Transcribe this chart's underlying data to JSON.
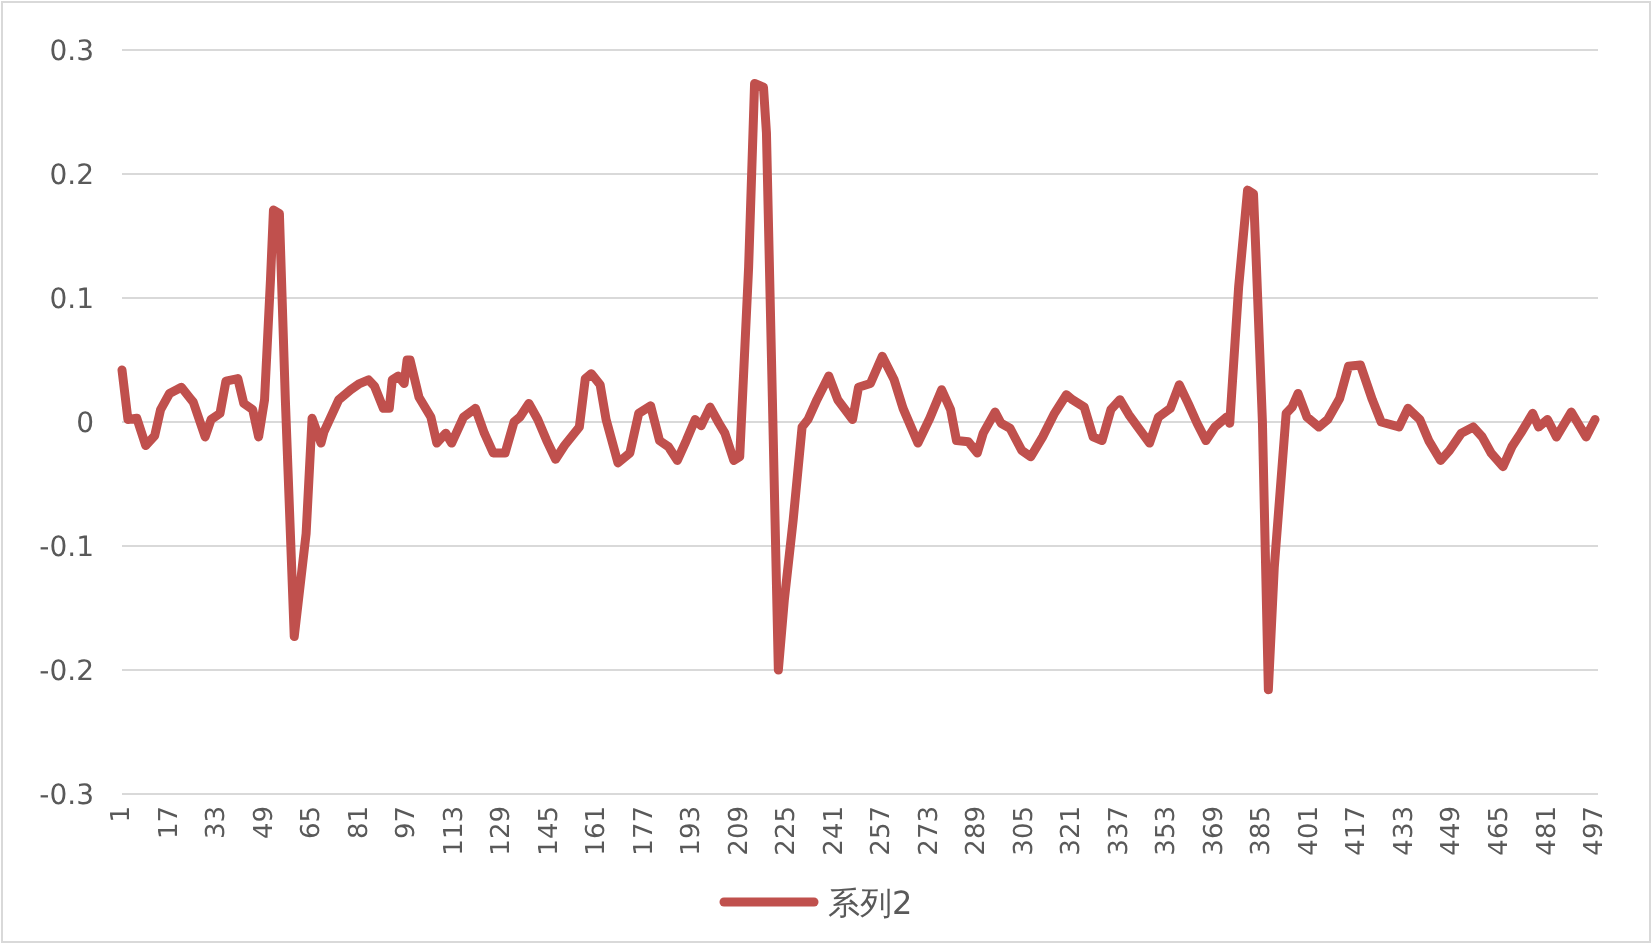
{
  "chart_data": {
    "type": "line",
    "grid": "y",
    "legend": "bottom",
    "xlim": [
      1,
      498
    ],
    "ylim": [
      -0.3,
      0.3
    ],
    "xticks": [
      1,
      17,
      33,
      49,
      65,
      81,
      97,
      113,
      129,
      145,
      161,
      177,
      193,
      209,
      225,
      241,
      257,
      273,
      289,
      305,
      321,
      337,
      353,
      369,
      385,
      401,
      417,
      433,
      449,
      465,
      481,
      497
    ],
    "yticks": [
      -0.3,
      -0.2,
      -0.1,
      0,
      0.1,
      0.2,
      0.3
    ],
    "x": [
      1,
      3,
      6,
      9,
      12,
      14,
      17,
      21,
      24,
      25,
      29,
      31,
      34,
      36,
      40,
      42,
      45,
      47,
      49,
      51,
      52,
      54,
      56,
      59,
      63,
      65,
      68,
      69,
      74,
      78,
      81,
      84,
      86,
      89,
      91,
      92,
      94,
      96,
      97,
      98,
      101,
      105,
      107,
      110,
      112,
      116,
      120,
      123,
      126,
      130,
      133,
      135,
      138,
      141,
      144,
      147,
      150,
      155,
      157,
      159,
      162,
      164,
      168,
      172,
      175,
      179,
      182,
      185,
      188,
      191,
      194,
      196,
      199,
      202,
      204,
      207,
      209,
      212,
      214,
      217,
      218,
      220,
      222,
      224,
      227,
      230,
      232,
      235,
      239,
      242,
      247,
      249,
      253,
      257,
      261,
      264,
      269,
      273,
      277,
      280,
      282,
      286,
      289,
      291,
      295,
      297,
      300,
      304,
      307,
      311,
      315,
      319,
      321,
      325,
      328,
      331,
      334,
      337,
      340,
      343,
      347,
      350,
      354,
      357,
      360,
      363,
      366,
      369,
      373,
      374,
      377,
      380,
      382,
      383,
      385,
      387,
      389,
      393,
      395,
      397,
      400,
      404,
      407,
      411,
      414,
      418,
      422,
      425,
      431,
      434,
      438,
      441,
      445,
      448,
      452,
      456,
      459,
      462,
      466,
      469,
      472,
      476,
      478,
      481,
      484,
      486,
      489,
      492,
      494,
      497
    ],
    "series": [
      {
        "name": "系列2",
        "color": "#c0504d",
        "values": [
          0.042,
          0.002,
          0.003,
          -0.019,
          -0.011,
          0.01,
          0.023,
          0.028,
          0.019,
          0.016,
          -0.012,
          0.002,
          0.007,
          0.033,
          0.035,
          0.015,
          0.01,
          -0.012,
          0.018,
          0.115,
          0.171,
          0.168,
          0.018,
          -0.173,
          -0.09,
          0.003,
          -0.017,
          -0.008,
          0.018,
          0.026,
          0.031,
          0.034,
          0.029,
          0.011,
          0.011,
          0.034,
          0.037,
          0.031,
          0.05,
          0.05,
          0.02,
          0.004,
          -0.017,
          -0.009,
          -0.017,
          0.004,
          0.011,
          -0.009,
          -0.025,
          -0.025,
          0.0,
          0.004,
          0.015,
          0.002,
          -0.015,
          -0.03,
          -0.019,
          -0.004,
          0.035,
          0.039,
          0.03,
          0.002,
          -0.033,
          -0.025,
          0.007,
          0.013,
          -0.015,
          -0.02,
          -0.031,
          -0.015,
          0.002,
          -0.003,
          0.012,
          -0.001,
          -0.009,
          -0.031,
          -0.028,
          0.125,
          0.273,
          0.27,
          0.233,
          0.018,
          -0.2,
          -0.144,
          -0.079,
          -0.004,
          0.002,
          0.018,
          0.037,
          0.018,
          0.002,
          0.028,
          0.031,
          0.053,
          0.034,
          0.011,
          -0.017,
          0.003,
          0.026,
          0.01,
          -0.015,
          -0.016,
          -0.025,
          -0.009,
          0.008,
          -0.001,
          -0.005,
          -0.023,
          -0.028,
          -0.012,
          0.007,
          0.022,
          0.018,
          0.012,
          -0.012,
          -0.015,
          0.01,
          0.018,
          0.006,
          -0.004,
          -0.017,
          0.004,
          0.011,
          0.03,
          0.015,
          -0.001,
          -0.015,
          -0.004,
          0.004,
          -0.001,
          0.109,
          0.187,
          0.184,
          0.125,
          0.0,
          -0.216,
          -0.117,
          0.007,
          0.012,
          0.023,
          0.004,
          -0.004,
          0.002,
          0.019,
          0.045,
          0.046,
          0.018,
          0.0,
          -0.004,
          0.011,
          0.002,
          -0.015,
          -0.031,
          -0.023,
          -0.009,
          -0.004,
          -0.012,
          -0.025,
          -0.036,
          -0.02,
          -0.009,
          0.007,
          -0.004,
          0.002,
          -0.012,
          -0.004,
          0.008,
          -0.004,
          -0.012,
          0.002
        ]
      }
    ]
  }
}
